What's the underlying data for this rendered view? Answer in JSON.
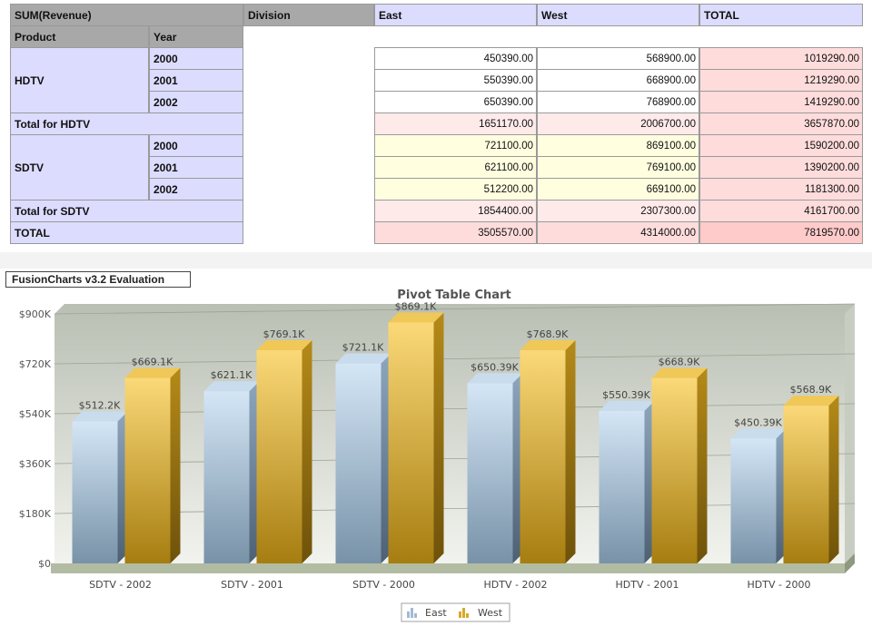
{
  "pivot": {
    "measure_label": "SUM(Revenue)",
    "division_label": "Division",
    "columns": [
      "East",
      "West",
      "TOTAL"
    ],
    "product_label": "Product",
    "year_label": "Year",
    "groups": [
      {
        "product": "HDTV",
        "rows": [
          {
            "year": "2000",
            "east": "450390.00",
            "west": "568900.00",
            "total": "1019290.00"
          },
          {
            "year": "2001",
            "east": "550390.00",
            "west": "668900.00",
            "total": "1219290.00"
          },
          {
            "year": "2002",
            "east": "650390.00",
            "west": "768900.00",
            "total": "1419290.00"
          }
        ],
        "subtotal": {
          "label": "Total for HDTV",
          "east": "1651170.00",
          "west": "2006700.00",
          "total": "3657870.00"
        }
      },
      {
        "product": "SDTV",
        "rows": [
          {
            "year": "2000",
            "east": "721100.00",
            "west": "869100.00",
            "total": "1590200.00"
          },
          {
            "year": "2001",
            "east": "621100.00",
            "west": "769100.00",
            "total": "1390200.00"
          },
          {
            "year": "2002",
            "east": "512200.00",
            "west": "669100.00",
            "total": "1181300.00"
          }
        ],
        "subtotal": {
          "label": "Total for SDTV",
          "east": "1854400.00",
          "west": "2307300.00",
          "total": "4161700.00"
        }
      }
    ],
    "grand_total": {
      "label": "TOTAL",
      "east": "3505570.00",
      "west": "4314000.00",
      "total": "7819570.00"
    }
  },
  "badge": "FusionCharts v3.2 Evaluation",
  "colors": {
    "header_gray": "#a8a8a8",
    "label_lavender": "#dcdcff",
    "row_yellow": "#ffffe0",
    "subtotal_pink": "#ffeaea",
    "total_pink": "#ffdcdc",
    "grand_pink": "#ffcaca",
    "east_blue": "#b4cde2",
    "west_gold": "#d9a82a"
  },
  "chart_data": {
    "type": "bar",
    "title": "Pivot Table Chart",
    "categories": [
      "SDTV - 2002",
      "SDTV - 2001",
      "SDTV - 2000",
      "HDTV - 2002",
      "HDTV - 2001",
      "HDTV - 2000"
    ],
    "series": [
      {
        "name": "East",
        "values": [
          512200,
          621100,
          721100,
          650390,
          550390,
          450390
        ],
        "labels": [
          "$512.2K",
          "$621.1K",
          "$721.1K",
          "$650.39K",
          "$550.39K",
          "$450.39K"
        ]
      },
      {
        "name": "West",
        "values": [
          669100,
          769100,
          869100,
          768900,
          668900,
          568900
        ],
        "labels": [
          "$669.1K",
          "$769.1K",
          "$869.1K",
          "$768.9K",
          "$668.9K",
          "$568.9K"
        ]
      }
    ],
    "ylim": [
      0,
      900000
    ],
    "yticks": [
      {
        "value": 0,
        "label": "$0"
      },
      {
        "value": 180000,
        "label": "$180K"
      },
      {
        "value": 360000,
        "label": "$360K"
      },
      {
        "value": 540000,
        "label": "$540K"
      },
      {
        "value": 720000,
        "label": "$720K"
      },
      {
        "value": 900000,
        "label": "$900K"
      }
    ],
    "grid": true,
    "legend_position": "bottom-center"
  }
}
